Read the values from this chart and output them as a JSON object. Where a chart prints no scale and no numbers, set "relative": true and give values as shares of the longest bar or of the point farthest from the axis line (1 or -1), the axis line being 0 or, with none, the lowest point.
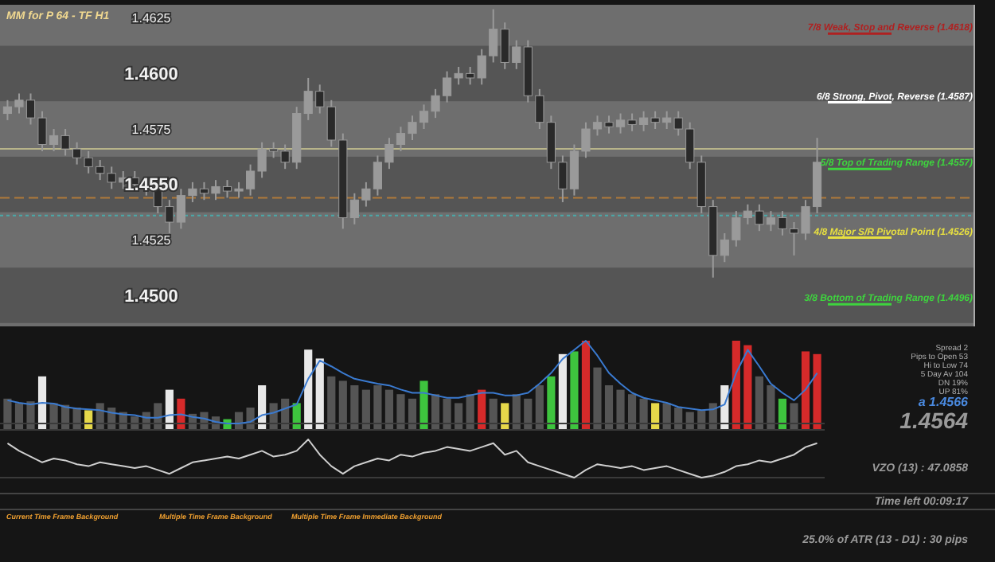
{
  "chart_data": [
    {
      "type": "candlestick",
      "title": "MM for P 64 - TF H1",
      "color": "#9a9a9a",
      "categories": [
        null,
        null,
        null,
        null,
        null,
        null,
        null,
        null,
        null,
        null,
        null,
        null,
        null,
        null,
        null,
        null,
        null,
        null,
        null,
        null,
        null,
        null,
        null,
        null,
        null,
        null,
        null,
        null,
        null,
        null,
        null,
        null,
        null,
        null,
        null,
        null,
        null,
        null,
        null,
        null,
        null,
        null,
        null,
        null,
        null,
        null,
        null,
        null,
        null,
        null,
        null,
        null,
        null,
        null,
        null,
        null,
        null,
        null,
        null,
        null,
        null,
        null,
        null,
        null,
        null,
        null,
        null,
        null,
        null,
        null,
        null
      ],
      "ohlc": [
        [
          1.4582,
          1.4588,
          1.4579,
          1.4585
        ],
        [
          1.4585,
          1.4591,
          1.4582,
          1.4588
        ],
        [
          1.4588,
          1.4591,
          1.4577,
          1.458
        ],
        [
          1.458,
          1.4583,
          1.4565,
          1.4568
        ],
        [
          1.4568,
          1.4575,
          1.4565,
          1.4572
        ],
        [
          1.4572,
          1.4575,
          1.4563,
          1.4566
        ],
        [
          1.4566,
          1.4569,
          1.4559,
          1.4562
        ],
        [
          1.4562,
          1.4565,
          1.4555,
          1.4558
        ],
        [
          1.4558,
          1.4561,
          1.4552,
          1.4555
        ],
        [
          1.4555,
          1.4558,
          1.4548,
          1.4551
        ],
        [
          1.4551,
          1.4556,
          1.4548,
          1.4553
        ],
        [
          1.4553,
          1.4556,
          1.4547,
          1.455
        ],
        [
          1.455,
          1.4553,
          1.4545,
          1.4548
        ],
        [
          1.4548,
          1.4551,
          1.4537,
          1.454
        ],
        [
          1.454,
          1.4543,
          1.4528,
          1.4533
        ],
        [
          1.4533,
          1.4548,
          1.453,
          1.4545
        ],
        [
          1.4545,
          1.4551,
          1.4542,
          1.4548
        ],
        [
          1.4548,
          1.4551,
          1.4543,
          1.4546
        ],
        [
          1.4546,
          1.4552,
          1.4543,
          1.4549
        ],
        [
          1.4549,
          1.4552,
          1.4544,
          1.4547
        ],
        [
          1.4547,
          1.4551,
          1.4544,
          1.4548
        ],
        [
          1.4548,
          1.4559,
          1.4545,
          1.4556
        ],
        [
          1.4556,
          1.4569,
          1.4553,
          1.4566
        ],
        [
          1.4566,
          1.4569,
          1.4562,
          1.4565
        ],
        [
          1.4565,
          1.4568,
          1.4557,
          1.456
        ],
        [
          1.456,
          1.4585,
          1.4557,
          1.4582
        ],
        [
          1.4582,
          1.4598,
          1.4579,
          1.4592
        ],
        [
          1.4592,
          1.4595,
          1.4582,
          1.4585
        ],
        [
          1.4585,
          1.4588,
          1.4567,
          1.457
        ],
        [
          1.457,
          1.4573,
          1.453,
          1.4535
        ],
        [
          1.4535,
          1.4546,
          1.4532,
          1.4543
        ],
        [
          1.4543,
          1.4551,
          1.454,
          1.4548
        ],
        [
          1.4548,
          1.4563,
          1.4545,
          1.456
        ],
        [
          1.456,
          1.4571,
          1.4557,
          1.4568
        ],
        [
          1.4568,
          1.4576,
          1.4565,
          1.4573
        ],
        [
          1.4573,
          1.4581,
          1.457,
          1.4578
        ],
        [
          1.4578,
          1.4586,
          1.4575,
          1.4583
        ],
        [
          1.4583,
          1.4593,
          1.458,
          1.459
        ],
        [
          1.459,
          1.4601,
          1.4587,
          1.4598
        ],
        [
          1.4598,
          1.4603,
          1.4595,
          1.46
        ],
        [
          1.46,
          1.4603,
          1.4595,
          1.4598
        ],
        [
          1.4598,
          1.4611,
          1.4595,
          1.4608
        ],
        [
          1.4608,
          1.4629,
          1.4605,
          1.462
        ],
        [
          1.462,
          1.4623,
          1.4602,
          1.4605
        ],
        [
          1.4605,
          1.4615,
          1.4602,
          1.4612
        ],
        [
          1.4612,
          1.4615,
          1.4587,
          1.459
        ],
        [
          1.459,
          1.4593,
          1.4575,
          1.4578
        ],
        [
          1.4578,
          1.4581,
          1.4557,
          1.456
        ],
        [
          1.456,
          1.4563,
          1.4542,
          1.4548
        ],
        [
          1.4548,
          1.4568,
          1.4545,
          1.4565
        ],
        [
          1.4565,
          1.4578,
          1.4562,
          1.4575
        ],
        [
          1.4575,
          1.4581,
          1.4572,
          1.4578
        ],
        [
          1.4578,
          1.4581,
          1.4573,
          1.4576
        ],
        [
          1.4576,
          1.4582,
          1.4573,
          1.4579
        ],
        [
          1.4579,
          1.4582,
          1.4574,
          1.4577
        ],
        [
          1.4577,
          1.4583,
          1.4574,
          1.458
        ],
        [
          1.458,
          1.4583,
          1.4575,
          1.4578
        ],
        [
          1.4578,
          1.4583,
          1.4575,
          1.458
        ],
        [
          1.458,
          1.4583,
          1.4572,
          1.4575
        ],
        [
          1.4575,
          1.4578,
          1.4557,
          1.456
        ],
        [
          1.456,
          1.4563,
          1.4537,
          1.454
        ],
        [
          1.454,
          1.4543,
          1.4508,
          1.4518
        ],
        [
          1.4518,
          1.4528,
          1.4515,
          1.4525
        ],
        [
          1.4525,
          1.4538,
          1.4522,
          1.4535
        ],
        [
          1.4535,
          1.4541,
          1.4532,
          1.4538
        ],
        [
          1.4538,
          1.4541,
          1.4529,
          1.4532
        ],
        [
          1.4532,
          1.4538,
          1.4529,
          1.4535
        ],
        [
          1.4535,
          1.4538,
          1.4527,
          1.453
        ],
        [
          1.453,
          1.4533,
          1.4518,
          1.4528
        ],
        [
          1.4528,
          1.4543,
          1.4525,
          1.454
        ],
        [
          1.454,
          1.4571,
          1.4537,
          1.456
        ]
      ],
      "ylim": [
        1.4486,
        1.4631
      ],
      "yticks": [
        {
          "value": 1.45,
          "label": "1.4500"
        },
        {
          "value": 1.4525,
          "label": "1.4525"
        },
        {
          "value": 1.455,
          "label": "1.4550"
        },
        {
          "value": 1.4575,
          "label": "1.4575"
        },
        {
          "value": 1.46,
          "label": "1.4600"
        },
        {
          "value": 1.4625,
          "label": "1.4625"
        }
      ],
      "tick_labels": "y",
      "bands": [
        {
          "axis": "y",
          "from": 1.44875,
          "to": 1.45125,
          "color": "#555555"
        },
        {
          "axis": "y",
          "from": 1.45375,
          "to": 1.45625,
          "color": "#555555"
        },
        {
          "axis": "y",
          "from": 1.45875,
          "to": 1.46125,
          "color": "#555555"
        }
      ],
      "ref_lines": [
        {
          "axis": "y",
          "value": 1.4618,
          "label": "7/8 Weak, Stop and Reverse  (1.4618)",
          "color": "#b02020"
        },
        {
          "axis": "y",
          "value": 1.4587,
          "label": "6/8 Strong, Pivot, Reverse  (1.4587)",
          "color": "#ffffff"
        },
        {
          "axis": "y",
          "value": 1.4557,
          "label": "5/8 Top of Trading Range  (1.4557)",
          "color": "#3ed43e"
        },
        {
          "axis": "y",
          "value": 1.4526,
          "label": "4/8 Major S/R Pivotal Point  (1.4526)",
          "color": "#e8e040"
        },
        {
          "axis": "y",
          "value": 1.4496,
          "label": "3/8 Bottom of Trading Range  (1.4496)",
          "color": "#3ed43e"
        },
        {
          "axis": "y",
          "value": 1.4566,
          "color": "#b8b48a",
          "line_style": "solid"
        },
        {
          "axis": "y",
          "value": 1.4544,
          "color": "#b07a3a",
          "line_style": "dashed"
        },
        {
          "axis": "y",
          "value": 1.4536,
          "color": "#4aa8a8",
          "line_style": "dotted"
        }
      ]
    },
    {
      "type": "bar",
      "relative": true,
      "categories": [
        null,
        null,
        null,
        null,
        null,
        null,
        null,
        null,
        null,
        null,
        null,
        null,
        null,
        null,
        null,
        null,
        null,
        null,
        null,
        null,
        null,
        null,
        null,
        null,
        null,
        null,
        null,
        null,
        null,
        null,
        null,
        null,
        null,
        null,
        null,
        null,
        null,
        null,
        null,
        null,
        null,
        null,
        null,
        null,
        null,
        null,
        null,
        null,
        null,
        null,
        null,
        null,
        null,
        null,
        null,
        null,
        null,
        null,
        null,
        null,
        null,
        null,
        null,
        null,
        null,
        null,
        null,
        null,
        null,
        null,
        null
      ],
      "colors": [
        "#555555",
        "#555555",
        "#555555",
        "#e8e8e8",
        "#555555",
        "#555555",
        "#555555",
        "#e6d84a",
        "#555555",
        "#555555",
        "#555555",
        "#555555",
        "#555555",
        "#555555",
        "#e8e8e8",
        "#d62a2a",
        "#555555",
        "#555555",
        "#555555",
        "#3ec43e",
        "#555555",
        "#555555",
        "#e8e8e8",
        "#555555",
        "#555555",
        "#3ec43e",
        "#e8e8e8",
        "#e8e8e8",
        "#555555",
        "#555555",
        "#555555",
        "#555555",
        "#555555",
        "#555555",
        "#555555",
        "#555555",
        "#3ec43e",
        "#555555",
        "#555555",
        "#555555",
        "#555555",
        "#d62a2a",
        "#555555",
        "#e6d84a",
        "#555555",
        "#555555",
        "#555555",
        "#3ec43e",
        "#e8e8e8",
        "#3ec43e",
        "#d62a2a",
        "#555555",
        "#555555",
        "#555555",
        "#555555",
        "#555555",
        "#e6d84a",
        "#555555",
        "#555555",
        "#555555",
        "#555555",
        "#555555",
        "#e8e8e8",
        "#d62a2a",
        "#d62a2a",
        "#555555",
        "#555555",
        "#3ec43e",
        "#555555",
        "#d62a2a",
        "#d62a2a"
      ],
      "values": [
        0.35,
        0.3,
        0.32,
        0.6,
        0.3,
        0.28,
        0.25,
        0.22,
        0.3,
        0.25,
        0.2,
        0.15,
        0.2,
        0.3,
        0.45,
        0.35,
        0.18,
        0.2,
        0.15,
        0.12,
        0.2,
        0.25,
        0.5,
        0.3,
        0.35,
        0.3,
        0.9,
        0.8,
        0.6,
        0.55,
        0.5,
        0.45,
        0.5,
        0.45,
        0.4,
        0.35,
        0.55,
        0.4,
        0.35,
        0.3,
        0.4,
        0.45,
        0.35,
        0.3,
        0.4,
        0.35,
        0.5,
        0.6,
        0.85,
        0.88,
        1,
        0.7,
        0.5,
        0.45,
        0.4,
        0.35,
        0.3,
        0.3,
        0.25,
        0.2,
        0.22,
        0.3,
        0.5,
        1,
        0.95,
        0.6,
        0.5,
        0.35,
        0.3,
        0.88,
        0.85
      ],
      "annotations": [
        "Spread  2",
        "Pips to Open  53",
        "Hi to Low  74",
        "5 Day Av  104",
        "DN 19%",
        "UP 81%",
        "a 1.4566",
        "1.4564"
      ]
    },
    {
      "type": "line",
      "relative": true,
      "color": "#3a7ad0",
      "categories": [
        null,
        null,
        null,
        null,
        null,
        null,
        null,
        null,
        null,
        null,
        null,
        null,
        null,
        null,
        null,
        null,
        null,
        null,
        null,
        null,
        null,
        null,
        null,
        null,
        null,
        null,
        null,
        null,
        null,
        null,
        null,
        null,
        null,
        null,
        null,
        null,
        null,
        null,
        null,
        null,
        null,
        null,
        null,
        null,
        null,
        null,
        null,
        null,
        null,
        null,
        null,
        null,
        null,
        null,
        null,
        null,
        null,
        null,
        null,
        null,
        null,
        null,
        null,
        null,
        null,
        null,
        null,
        null,
        null,
        null,
        null
      ],
      "values": [
        0.28,
        0.25,
        0.23,
        0.25,
        0.24,
        0.2,
        0.18,
        0.17,
        0.16,
        0.13,
        0.11,
        0.1,
        0.07,
        0.07,
        0.1,
        0.11,
        0.08,
        0.06,
        0.02,
        0,
        0,
        0.02,
        0.1,
        0.13,
        0.18,
        0.23,
        0.54,
        0.76,
        0.69,
        0.61,
        0.54,
        0.51,
        0.48,
        0.46,
        0.41,
        0.37,
        0.37,
        0.34,
        0.31,
        0.31,
        0.34,
        0.37,
        0.37,
        0.34,
        0.34,
        0.37,
        0.48,
        0.61,
        0.78,
        0.89,
        1,
        0.82,
        0.61,
        0.48,
        0.37,
        0.31,
        0.28,
        0.25,
        0.2,
        0.18,
        0.16,
        0.17,
        0.23,
        0.61,
        0.89,
        0.69,
        0.48,
        0.37,
        0.28,
        0.41,
        0.61
      ]
    },
    {
      "type": "line",
      "relative": true,
      "color": "#cfcfcf",
      "categories": [
        null,
        null,
        null,
        null,
        null,
        null,
        null,
        null,
        null,
        null,
        null,
        null,
        null,
        null,
        null,
        null,
        null,
        null,
        null,
        null,
        null,
        null,
        null,
        null,
        null,
        null,
        null,
        null,
        null,
        null,
        null,
        null,
        null,
        null,
        null,
        null,
        null,
        null,
        null,
        null,
        null,
        null,
        null,
        null,
        null,
        null,
        null,
        null,
        null,
        null,
        null,
        null,
        null,
        null,
        null,
        null,
        null,
        null,
        null,
        null,
        null,
        null,
        null,
        null,
        null,
        null,
        null,
        null,
        null,
        null,
        null
      ],
      "values": [
        0.9,
        0.7,
        0.55,
        0.4,
        0.5,
        0.45,
        0.35,
        0.3,
        0.4,
        0.35,
        0.3,
        0.25,
        0.3,
        0.2,
        0.1,
        0.25,
        0.4,
        0.45,
        0.5,
        0.55,
        0.5,
        0.6,
        0.7,
        0.55,
        0.6,
        0.7,
        1.0,
        0.6,
        0.3,
        0.1,
        0.3,
        0.4,
        0.5,
        0.45,
        0.6,
        0.55,
        0.65,
        0.7,
        0.8,
        0.75,
        0.7,
        0.8,
        0.9,
        0.6,
        0.7,
        0.4,
        0.3,
        0.2,
        0.1,
        0.0,
        0.2,
        0.35,
        0.3,
        0.25,
        0.3,
        0.2,
        0.25,
        0.3,
        0.2,
        0.1,
        0.0,
        0.05,
        0.15,
        0.3,
        0.35,
        0.45,
        0.4,
        0.5,
        0.6,
        0.8,
        0.9
      ],
      "annotations": [
        "VZO (13) : 47.0858",
        "Time left  00:09:17",
        "Current Time Frame Background",
        "Multiple Time Frame Background",
        "Multiple Time Frame Immediate Background",
        "25.0% of ATR (13 - D1) : 30 pips"
      ]
    }
  ]
}
